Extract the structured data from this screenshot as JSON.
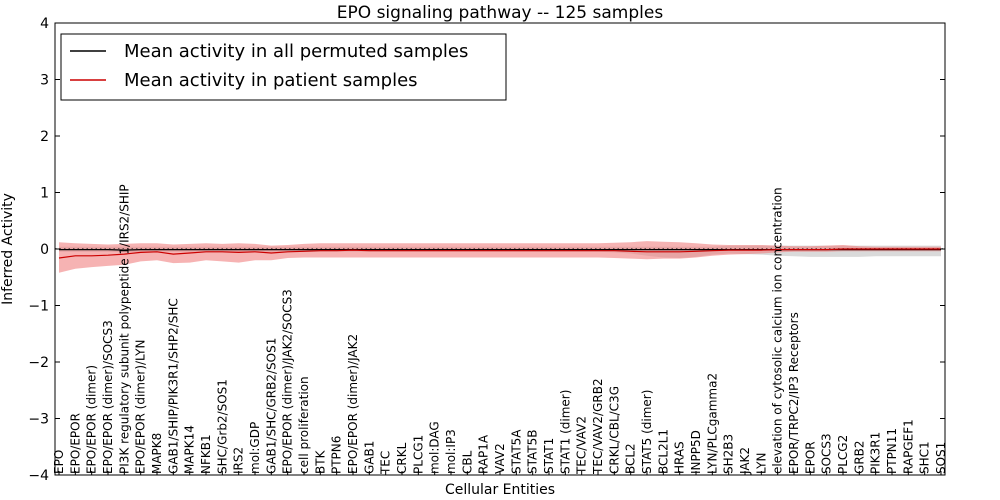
{
  "chart_data": {
    "type": "line",
    "title": "EPO signaling pathway -- 125 samples",
    "xlabel": "Cellular Entities",
    "ylabel": "Inferred Activity",
    "ylim": [
      -4,
      4
    ],
    "yticks": [
      "4",
      "3",
      "2",
      "1",
      "0",
      "−1",
      "−2",
      "−3",
      "−4"
    ],
    "ytick_values": [
      4,
      3,
      2,
      1,
      0,
      -1,
      -2,
      -3,
      -4
    ],
    "legend_position": "top-left",
    "categories": [
      "EPO",
      "EPO/EPOR",
      "EPO/EPOR (dimer)",
      "EPO/EPOR (dimer)/SOCS3",
      "PI3K regulatory subunit polypeptide 1/IRS2/SHIP",
      "EPO/EPOR (dimer)/LYN",
      "MAPK8",
      "GAB1/SHIP/PIK3R1/SHP2/SHC",
      "MAPK14",
      "NFKB1",
      "SHC/Grb2/SOS1",
      "IRS2",
      "mol:GDP",
      "GAB1/SHC/GRB2/SOS1",
      "EPO/EPOR (dimer)/JAK2/SOCS3",
      "cell proliferation",
      "BTK",
      "PTPN6",
      "EPO/EPOR (dimer)/JAK2",
      "GAB1",
      "TEC",
      "CRKL",
      "PLCG1",
      "mol:DAG",
      "mol:IP3",
      "CBL",
      "RAP1A",
      "VAV2",
      "STAT5A",
      "STAT5B",
      "STAT1",
      "STAT1 (dimer)",
      "TEC/VAV2",
      "TEC/VAV2/GRB2",
      "CRKL/CBL/C3G",
      "BCL2",
      "STAT5 (dimer)",
      "BCL2L1",
      "HRAS",
      "INPP5D",
      "LYN/PLCgamma2",
      "SH2B3",
      "JAK2",
      "LYN",
      "elevation of cytosolic calcium ion concentration",
      "EPOR/TRPC2/IP3 Receptors",
      "EPOR",
      "SOCS3",
      "PLCG2",
      "GRB2",
      "PIK3R1",
      "PTPN11",
      "RAPGEF1",
      "SHC1",
      "SOS1"
    ],
    "series": [
      {
        "name": "Mean activity in all permuted samples",
        "color": "#000000",
        "band_color": "#bbbbbb",
        "values": [
          -0.01,
          -0.01,
          -0.01,
          -0.01,
          -0.02,
          -0.01,
          -0.01,
          -0.01,
          -0.01,
          -0.01,
          -0.01,
          -0.01,
          -0.01,
          -0.01,
          -0.01,
          -0.01,
          -0.01,
          -0.01,
          -0.01,
          -0.01,
          -0.01,
          -0.01,
          -0.01,
          -0.01,
          -0.01,
          -0.01,
          -0.01,
          -0.01,
          -0.01,
          -0.01,
          -0.01,
          -0.01,
          -0.01,
          -0.01,
          -0.01,
          -0.01,
          -0.01,
          -0.01,
          -0.01,
          -0.01,
          -0.01,
          -0.01,
          -0.01,
          -0.01,
          -0.01,
          -0.01,
          -0.01,
          -0.01,
          -0.01,
          -0.01,
          -0.01,
          -0.01,
          -0.01,
          -0.01,
          -0.01
        ],
        "lower": [
          -0.05,
          -0.05,
          -0.05,
          -0.05,
          -0.06,
          -0.05,
          -0.05,
          -0.05,
          -0.05,
          -0.05,
          -0.05,
          -0.05,
          -0.05,
          -0.05,
          -0.05,
          -0.05,
          -0.05,
          -0.05,
          -0.05,
          -0.05,
          -0.05,
          -0.05,
          -0.05,
          -0.05,
          -0.05,
          -0.05,
          -0.05,
          -0.05,
          -0.05,
          -0.05,
          -0.05,
          -0.05,
          -0.05,
          -0.05,
          -0.06,
          -0.08,
          -0.12,
          -0.15,
          -0.16,
          -0.14,
          -0.1,
          -0.08,
          -0.09,
          -0.1,
          -0.12,
          -0.13,
          -0.14,
          -0.14,
          -0.14,
          -0.14,
          -0.13,
          -0.13,
          -0.13,
          -0.13,
          -0.13
        ],
        "upper": [
          0.04,
          0.04,
          0.04,
          0.04,
          0.04,
          0.04,
          0.04,
          0.04,
          0.04,
          0.04,
          0.04,
          0.04,
          0.04,
          0.04,
          0.04,
          0.04,
          0.04,
          0.04,
          0.04,
          0.04,
          0.04,
          0.04,
          0.04,
          0.04,
          0.04,
          0.04,
          0.04,
          0.04,
          0.04,
          0.04,
          0.04,
          0.04,
          0.04,
          0.04,
          0.04,
          0.04,
          0.04,
          0.04,
          0.04,
          0.04,
          0.04,
          0.06,
          0.06,
          0.06,
          0.06,
          0.06,
          0.06,
          0.06,
          0.06,
          0.06,
          0.06,
          0.06,
          0.06,
          0.06,
          0.06
        ]
      },
      {
        "name": "Mean activity in patient samples",
        "color": "#cc0000",
        "band_color": "#f08080",
        "values": [
          -0.16,
          -0.12,
          -0.12,
          -0.11,
          -0.09,
          -0.06,
          -0.05,
          -0.09,
          -0.07,
          -0.05,
          -0.05,
          -0.06,
          -0.05,
          -0.07,
          -0.05,
          -0.04,
          -0.03,
          -0.03,
          -0.02,
          -0.03,
          -0.03,
          -0.03,
          -0.03,
          -0.03,
          -0.03,
          -0.03,
          -0.03,
          -0.03,
          -0.03,
          -0.03,
          -0.03,
          -0.03,
          -0.03,
          -0.03,
          -0.03,
          -0.04,
          -0.05,
          -0.05,
          -0.05,
          -0.04,
          -0.03,
          -0.02,
          -0.02,
          -0.02,
          -0.01,
          -0.01,
          -0.01,
          -0.01,
          0.0,
          0.0,
          0.0,
          0.0,
          0.0,
          0.0,
          0.0
        ],
        "lower": [
          -0.42,
          -0.35,
          -0.32,
          -0.3,
          -0.28,
          -0.22,
          -0.2,
          -0.25,
          -0.24,
          -0.2,
          -0.22,
          -0.24,
          -0.2,
          -0.2,
          -0.16,
          -0.15,
          -0.15,
          -0.15,
          -0.15,
          -0.15,
          -0.15,
          -0.15,
          -0.15,
          -0.15,
          -0.15,
          -0.15,
          -0.15,
          -0.15,
          -0.15,
          -0.15,
          -0.15,
          -0.15,
          -0.15,
          -0.15,
          -0.16,
          -0.17,
          -0.18,
          -0.17,
          -0.17,
          -0.15,
          -0.12,
          -0.1,
          -0.09,
          -0.08,
          -0.06,
          -0.05,
          -0.05,
          -0.05,
          -0.04,
          -0.04,
          -0.04,
          -0.04,
          -0.04,
          -0.04,
          -0.04
        ],
        "upper": [
          0.12,
          0.1,
          0.09,
          0.08,
          0.09,
          0.1,
          0.1,
          0.08,
          0.09,
          0.1,
          0.09,
          0.1,
          0.09,
          0.06,
          0.07,
          0.09,
          0.1,
          0.1,
          0.1,
          0.1,
          0.1,
          0.1,
          0.1,
          0.1,
          0.1,
          0.1,
          0.1,
          0.1,
          0.1,
          0.1,
          0.1,
          0.1,
          0.1,
          0.1,
          0.11,
          0.12,
          0.14,
          0.13,
          0.12,
          0.1,
          0.08,
          0.07,
          0.07,
          0.07,
          0.06,
          0.05,
          0.05,
          0.06,
          0.07,
          0.05,
          0.04,
          0.04,
          0.04,
          0.04,
          0.04
        ]
      }
    ]
  }
}
